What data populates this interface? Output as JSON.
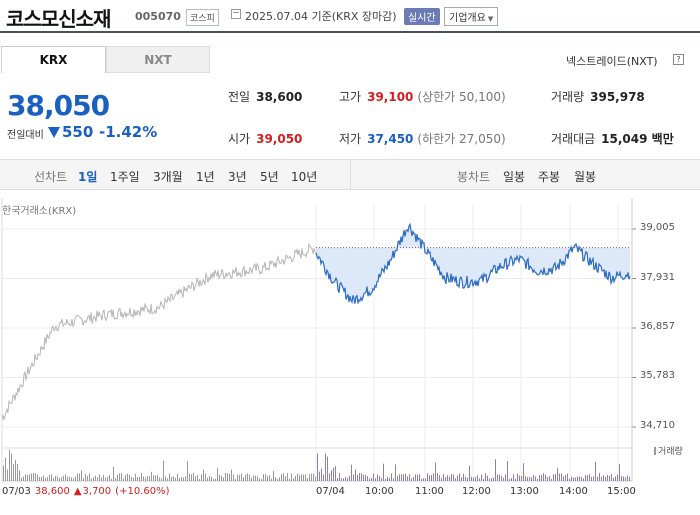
{
  "header": {
    "stock_name": "코스모신소재",
    "code": "005070",
    "market": "코스피",
    "date_text": "2025.07.04 기준(KRX 장마감)",
    "realtime": "실시간",
    "company_info": "기업개요"
  },
  "tabs": [
    {
      "label": "KRX"
    },
    {
      "label": "NXT"
    }
  ],
  "nxt_trade": "넥스트레이드(NXT)",
  "nxt_help": "?",
  "quote": {
    "price": "38,050",
    "change_label": "전일대비",
    "change": "550",
    "change_pct": "-1.42%"
  },
  "stats": {
    "prev_label": "전일",
    "prev": "38,600",
    "high_label": "고가",
    "high": "39,100",
    "upper_limit": "(상한가 50,100)",
    "volume_label": "거래량",
    "volume": "395,978",
    "open_label": "시가",
    "open": "39,050",
    "low_label": "저가",
    "low": "37,450",
    "lower_limit": "(하한가 27,050)",
    "amount_label": "거래대금",
    "amount": "15,049 백만"
  },
  "periods": {
    "line_label": "선차트",
    "items": [
      "1일",
      "1주일",
      "3개월",
      "1년",
      "3년",
      "5년",
      "10년"
    ],
    "selected": "1일",
    "candle_label": "봉차트",
    "candle_items": [
      "일봉",
      "주봉",
      "월봉"
    ]
  },
  "source": "한국거래소(KRX)",
  "chart_data": {
    "type": "line",
    "y_ticks": [
      "39,005",
      "37,931",
      "36,857",
      "35,783",
      "34,710"
    ],
    "ylim": [
      34710,
      39005
    ],
    "x_ticks": [
      "07/03",
      "07/04",
      "10:00",
      "11:00",
      "12:00",
      "13:00",
      "14:00",
      "15:00"
    ],
    "reference_line": 38600,
    "volume_label": "거래량",
    "colors": {
      "prev_day": "#b5b5b5",
      "today": "#2c6bc4",
      "fill": "#dde8f8",
      "volume": "#999999"
    },
    "series": [
      {
        "x": [
          "07/03 09:00",
          "07/03 10:00",
          "07/03 11:00",
          "07/03 12:00",
          "07/03 13:00",
          "07/03 14:00",
          "07/03 15:30"
        ],
        "values": [
          34900,
          36900,
          37150,
          37300,
          38000,
          38150,
          38600
        ]
      },
      {
        "x": [
          "09:00",
          "09:10",
          "09:30",
          "10:00",
          "10:20",
          "10:30",
          "10:45",
          "11:00",
          "11:30",
          "12:00",
          "12:30",
          "13:00",
          "13:15",
          "13:30",
          "14:00",
          "14:30",
          "15:00",
          "15:30"
        ],
        "values": [
          38500,
          37850,
          37450,
          37700,
          38300,
          39100,
          38500,
          37950,
          37850,
          37900,
          38200,
          38350,
          38100,
          38150,
          38600,
          38250,
          37950,
          38050
        ]
      }
    ],
    "footer": {
      "date": "07/03",
      "close": "38,600",
      "change": "3,700",
      "pct": "(+10.60%)"
    }
  }
}
